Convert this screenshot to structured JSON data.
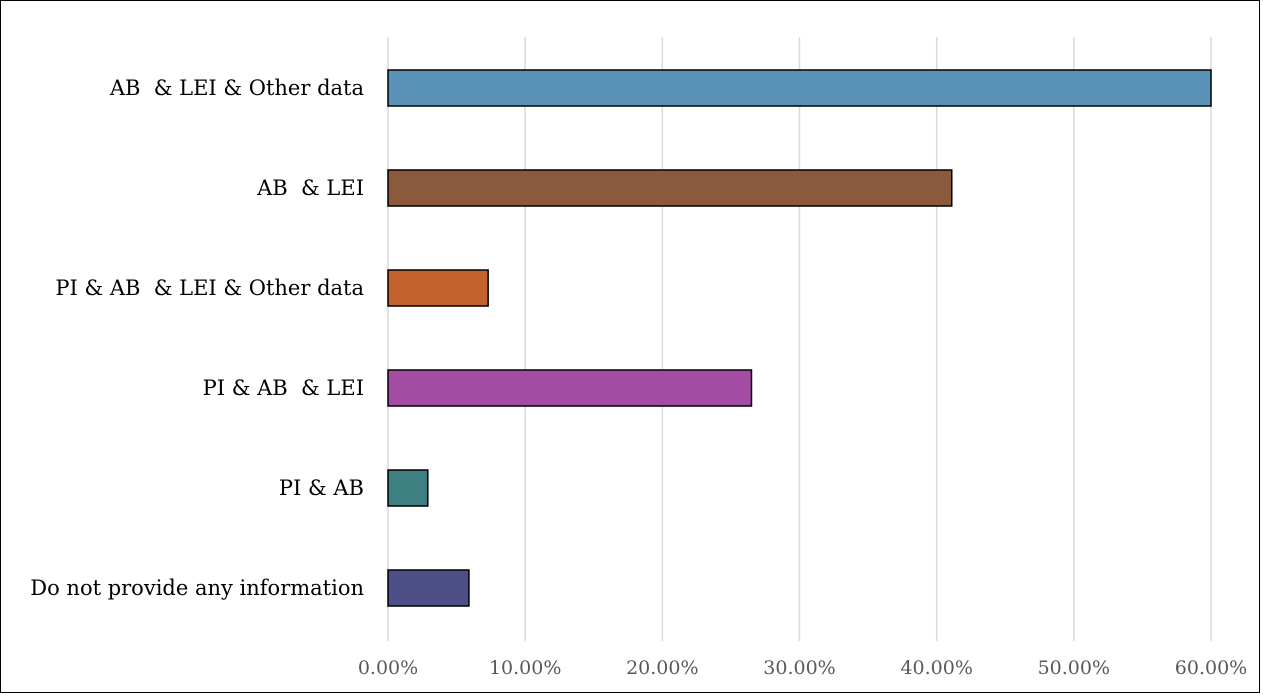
{
  "chart_data": {
    "type": "bar",
    "orientation": "horizontal",
    "categories": [
      "AB  & LEI & Other data",
      "AB  & LEI",
      "PI & AB  & LEI & Other data",
      "PI & AB  & LEI",
      "PI & AB",
      "Do not provide any information"
    ],
    "values": [
      0.6,
      0.411,
      0.073,
      0.265,
      0.029,
      0.059
    ],
    "colors": [
      "#5b93b8",
      "#8b5a3c",
      "#c4622d",
      "#a24ca3",
      "#3e7f82",
      "#4f4f88"
    ],
    "xlim": [
      0,
      0.6
    ],
    "xticks": [
      "0.00%",
      "10.00%",
      "20.00%",
      "30.00%",
      "40.00%",
      "50.00%",
      "60.00%"
    ],
    "grid": true,
    "legend": "none",
    "title": "",
    "xlabel": "",
    "ylabel": ""
  }
}
